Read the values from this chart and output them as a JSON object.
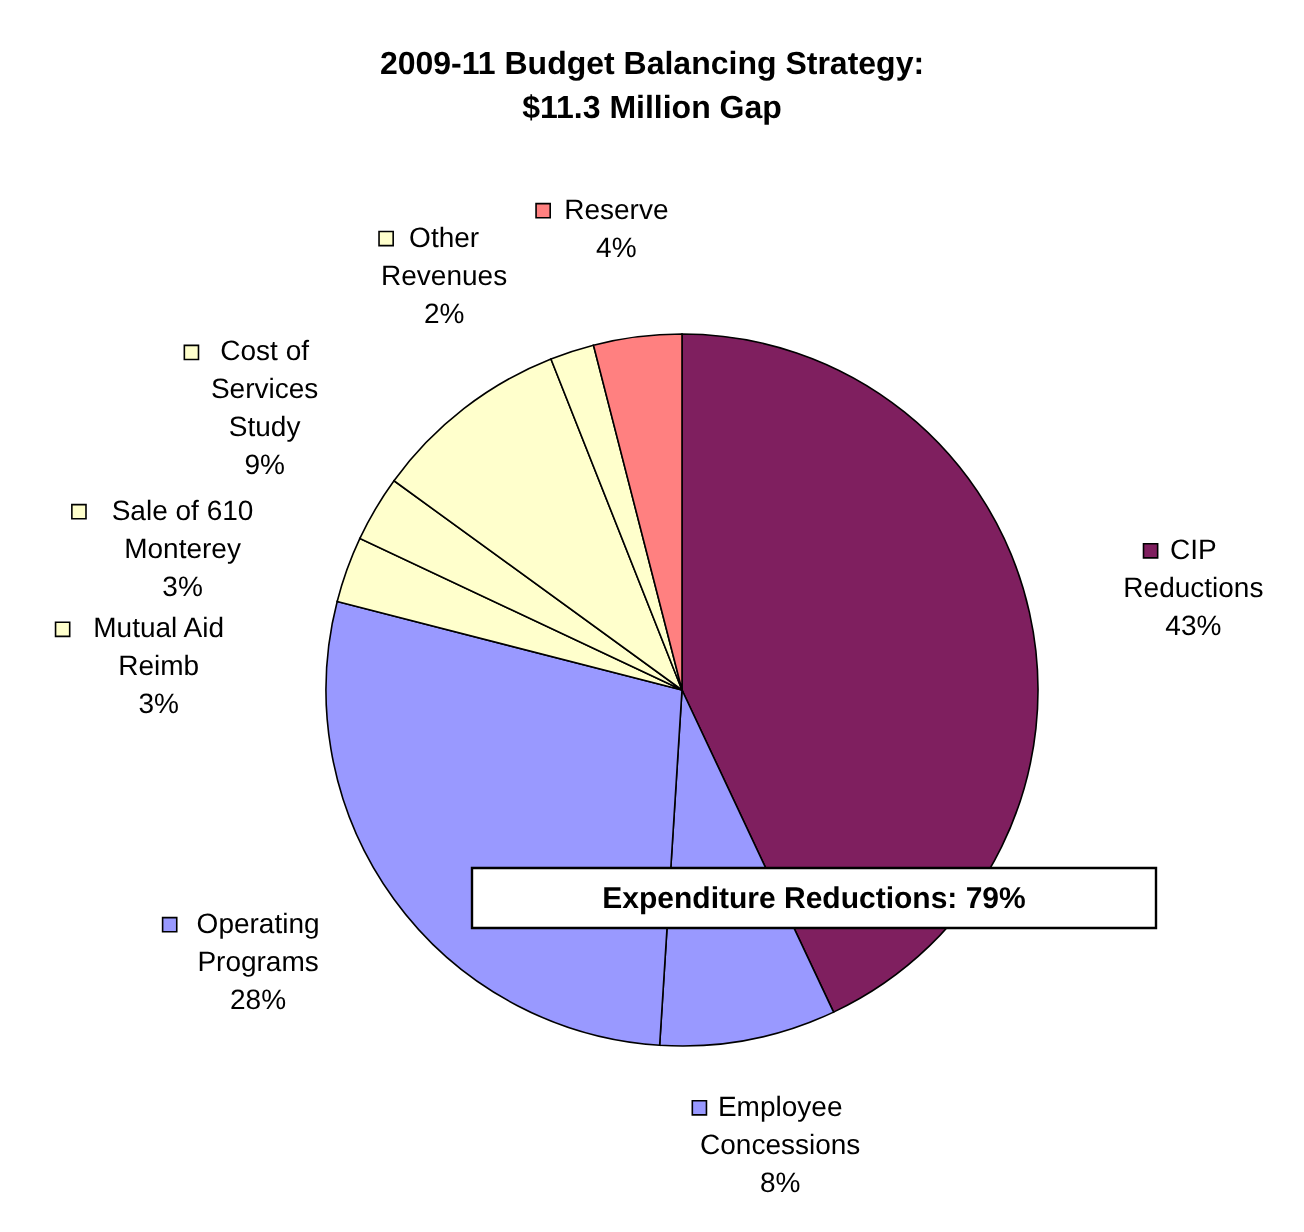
{
  "chart_data": {
    "type": "pie",
    "title": "2009-11 Budget Balancing Strategy: $11.3 Million Gap",
    "categories": [
      "CIP Reductions",
      "Employee Concessions",
      "Operating Programs",
      "Mutual Aid Reimb",
      "Sale of 610 Monterey",
      "Cost of Services Study",
      "Other Revenues",
      "Reserve"
    ],
    "values": [
      43,
      8,
      28,
      3,
      3,
      9,
      2,
      4
    ],
    "value_labels": [
      "43%",
      "8%",
      "28%",
      "3%",
      "3%",
      "9%",
      "2%",
      "4%"
    ],
    "colors": [
      "#7f1f5f",
      "#9999ff",
      "#9999ff",
      "#ffffcc",
      "#ffffcc",
      "#ffffcc",
      "#ffffcc",
      "#ff8080"
    ],
    "annotations": [
      "Expenditure Reductions: 79%"
    ],
    "legend": "left"
  }
}
